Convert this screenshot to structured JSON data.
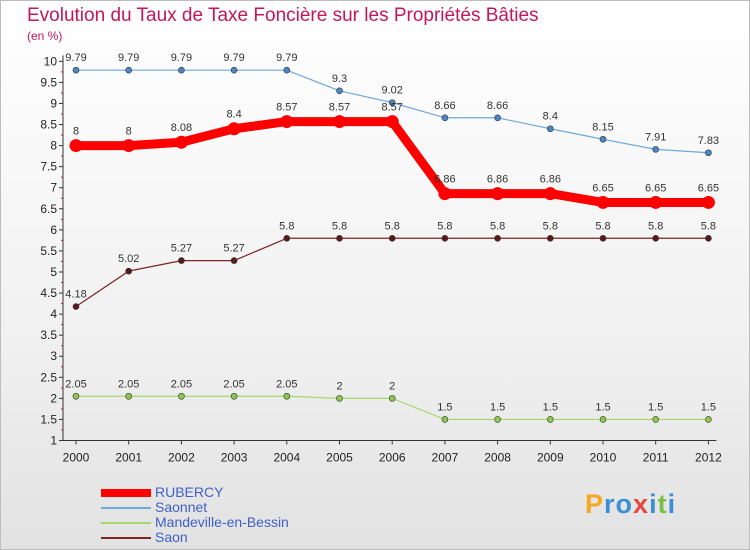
{
  "chart_data": {
    "type": "line",
    "title": "Evolution du Taux de Taxe Foncière sur les Propriétés Bâties",
    "subtitle": "(en %)",
    "x": [
      "2000",
      "2001",
      "2002",
      "2003",
      "2004",
      "2005",
      "2006",
      "2007",
      "2008",
      "2009",
      "2010",
      "2011",
      "2012"
    ],
    "yticks": [
      "1",
      "1.5",
      "2",
      "2.5",
      "3",
      "3.5",
      "4",
      "4.5",
      "5",
      "5.5",
      "6",
      "6.5",
      "7",
      "7.5",
      "8",
      "8.5",
      "9",
      "9.5",
      "10"
    ],
    "ylim": [
      1,
      10
    ],
    "series": [
      {
        "name": "RUBERCY",
        "color": "#ff0000",
        "bold": true,
        "values": [
          8,
          8,
          8.08,
          8.4,
          8.57,
          8.57,
          8.57,
          6.86,
          6.86,
          6.86,
          6.65,
          6.65,
          6.65
        ],
        "labels": [
          "8",
          "8",
          "8.08",
          "8.4",
          "8.57",
          "8.57",
          "8.57",
          "6.86",
          "6.86",
          "6.86",
          "6.65",
          "6.65",
          "6.65"
        ]
      },
      {
        "name": "Saonnet",
        "color": "#6fa8dc",
        "point": "#4a86c8",
        "bold": false,
        "values": [
          9.79,
          9.79,
          9.79,
          9.79,
          9.79,
          9.3,
          9.02,
          8.66,
          8.66,
          8.4,
          8.15,
          7.91,
          7.83
        ],
        "labels": [
          "9.79",
          "9.79",
          "9.79",
          "9.79",
          "9.79",
          "9.3",
          "9.02",
          "8.66",
          "8.66",
          "8.4",
          "8.15",
          "7.91",
          "7.83"
        ]
      },
      {
        "name": "Mandeville-en-Bessin",
        "color": "#a5d86b",
        "point": "#8cc84b",
        "bold": false,
        "values": [
          2.05,
          2.05,
          2.05,
          2.05,
          2.05,
          2,
          2,
          1.5,
          1.5,
          1.5,
          1.5,
          1.5,
          1.5
        ],
        "labels": [
          "2.05",
          "2.05",
          "2.05",
          "2.05",
          "2.05",
          "2",
          "2",
          "1.5",
          "1.5",
          "1.5",
          "1.5",
          "1.5",
          "1.5"
        ]
      },
      {
        "name": "Saon",
        "color": "#7b2525",
        "point": "#5a1a1a",
        "bold": false,
        "values": [
          4.18,
          5.02,
          5.27,
          5.27,
          5.8,
          5.8,
          5.8,
          5.8,
          5.8,
          5.8,
          5.8,
          5.8,
          5.8
        ],
        "labels": [
          "4.18",
          "5.02",
          "5.27",
          "5.27",
          "5.8",
          "5.8",
          "5.8",
          "5.8",
          "5.8",
          "5.8",
          "5.8",
          "5.8",
          "5.8"
        ]
      }
    ],
    "legend": [
      "RUBERCY",
      "Saonnet",
      "Mandeville-en-Bessin",
      "Saon"
    ],
    "legend_position": "bottom-left"
  },
  "logo": {
    "text": "Proxiti",
    "letters": [
      {
        "ch": "P",
        "color": "#f5a623"
      },
      {
        "ch": "r",
        "color": "#3a8fd6"
      },
      {
        "ch": "o",
        "color": "#3a8fd6"
      },
      {
        "ch": "x",
        "color": "#e8453c"
      },
      {
        "ch": "i",
        "color": "#3a8fd6"
      },
      {
        "ch": "t",
        "color": "#7bc043"
      },
      {
        "ch": "i",
        "color": "#3a8fd6"
      }
    ]
  }
}
